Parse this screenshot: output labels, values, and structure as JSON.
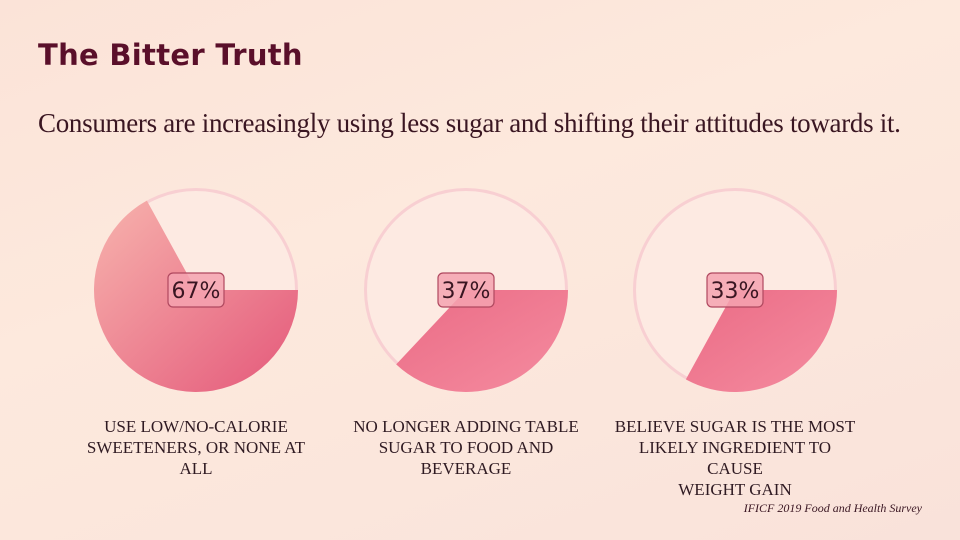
{
  "title": "The Bitter Truth",
  "subtitle": "Consumers are increasingly using less sugar and shifting their attitudes towards it.",
  "source": "IFICF 2019 Food and Health Survey",
  "colors": {
    "fill_light": "#f49aa6",
    "fill_dark": "#e45c79",
    "ring": "#f8cfd2",
    "label_bg": "#f4a3b0",
    "label_border": "#b0485f",
    "label_text": "#3a1622"
  },
  "chart_data": [
    {
      "type": "pie",
      "value": 67,
      "label": "67%",
      "caption_lines": [
        "USE LOW/NO-CALORIE",
        "SWEETENERS, OR NONE AT ALL"
      ]
    },
    {
      "type": "pie",
      "value": 37,
      "label": "37%",
      "caption_lines": [
        "NO LONGER ADDING TABLE",
        "SUGAR TO FOOD AND",
        "BEVERAGE"
      ]
    },
    {
      "type": "pie",
      "value": 33,
      "label": "33%",
      "caption_lines": [
        "BELIEVE SUGAR IS THE MOST",
        "LIKELY INGREDIENT TO CAUSE",
        "WEIGHT GAIN"
      ]
    }
  ]
}
